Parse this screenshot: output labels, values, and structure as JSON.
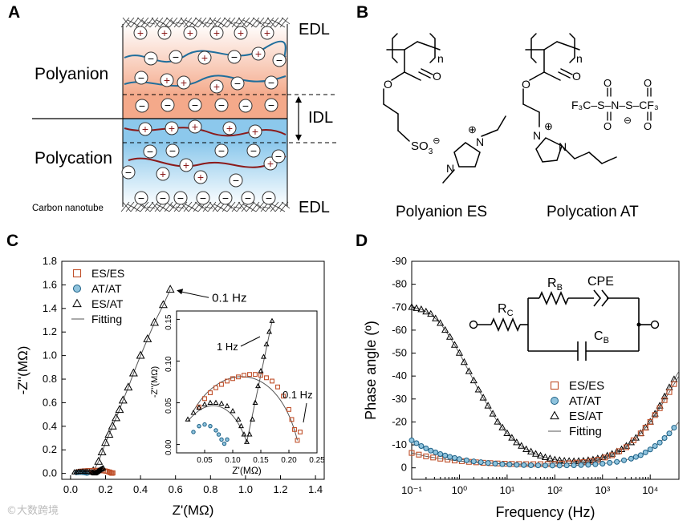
{
  "panel_labels": {
    "a": "A",
    "b": "B",
    "c": "C",
    "d": "D"
  },
  "panel_a": {
    "polyanion": "Polyanion",
    "polycation": "Polycation",
    "edl_top": "EDL",
    "edl_bottom": "EDL",
    "idl": "IDL",
    "cnt": "Carbon nanotube",
    "plus": "+",
    "minus": "−"
  },
  "panel_b": {
    "es_name": "Polyanion ES",
    "at_name": "Polycation AT",
    "n": "n",
    "so3": "SO",
    "so3_sub": "3",
    "so3_sup": "⊖",
    "n_atom": "N",
    "n_plus": "⊕",
    "o_atom": "O",
    "tfsi_left": "F₃C–S–N–S–CF₃",
    "tfsi_minus": "⊖"
  },
  "colors": {
    "es": "#c0502a",
    "at": "#2a7fa8",
    "esat": "#000000",
    "fit": "#555555",
    "polyanion_bg": "#f4a98a",
    "polycation_bg": "#8cc8ec",
    "chain_anion": "#1f6e9c",
    "chain_cation": "#8b1a1a"
  },
  "chart_data": [
    {
      "panel": "C",
      "type": "scatter",
      "xlabel": "Z'(MΩ)",
      "ylabel": "-Z''(MΩ)",
      "xlim": [
        -0.05,
        1.45
      ],
      "ylim": [
        -0.05,
        1.8
      ],
      "xticks": [
        "0.0",
        "0.2",
        "0.4",
        "0.6",
        "0.8",
        "1.0",
        "1.2",
        "1.4"
      ],
      "yticks": [
        "0.0",
        "0.2",
        "0.4",
        "0.6",
        "0.8",
        "1.0",
        "1.2",
        "1.4",
        "1.6",
        "1.8"
      ],
      "legend": [
        "ES/ES",
        "AT/AT",
        "ES/AT",
        "Fitting"
      ],
      "annotation": "0.1 Hz",
      "series": [
        {
          "name": "ES/AT",
          "x": [
            0.13,
            0.16,
            0.18,
            0.2,
            0.22,
            0.24,
            0.26,
            0.28,
            0.3,
            0.33,
            0.36,
            0.4,
            0.44,
            0.48,
            0.53,
            0.57
          ],
          "y": [
            0.02,
            0.1,
            0.18,
            0.26,
            0.33,
            0.4,
            0.47,
            0.54,
            0.62,
            0.73,
            0.85,
            1.0,
            1.14,
            1.28,
            1.43,
            1.56
          ]
        }
      ],
      "inset": {
        "xlabel": "Z'(MΩ)",
        "ylabel": "-Z''(MΩ)",
        "xlim": [
          0.0,
          0.25
        ],
        "ylim": [
          -0.01,
          0.16
        ],
        "xticks": [
          "0.05",
          "0.10",
          "0.15",
          "0.20",
          "0.25"
        ],
        "yticks": [
          "0.00",
          "0.05",
          "0.10",
          "0.15"
        ],
        "annotations": [
          "1 Hz",
          "0.1 Hz"
        ],
        "es_es": {
          "x": [
            0.04,
            0.05,
            0.06,
            0.07,
            0.08,
            0.09,
            0.1,
            0.11,
            0.12,
            0.13,
            0.14,
            0.15,
            0.16,
            0.17,
            0.18,
            0.19,
            0.2,
            0.205,
            0.21,
            0.215,
            0.22
          ],
          "y": [
            0.045,
            0.055,
            0.062,
            0.068,
            0.072,
            0.076,
            0.079,
            0.081,
            0.083,
            0.084,
            0.084,
            0.083,
            0.08,
            0.076,
            0.069,
            0.058,
            0.042,
            0.03,
            0.018,
            0.005,
            0.015
          ]
        },
        "at_at": {
          "x": [
            0.03,
            0.04,
            0.05,
            0.06,
            0.07,
            0.075,
            0.08,
            0.085,
            0.09
          ],
          "y": [
            0.015,
            0.022,
            0.024,
            0.022,
            0.017,
            0.012,
            0.006,
            0.001,
            0.006
          ]
        },
        "es_at": {
          "x": [
            0.02,
            0.03,
            0.04,
            0.05,
            0.06,
            0.07,
            0.08,
            0.09,
            0.1,
            0.11,
            0.115,
            0.12,
            0.125,
            0.13,
            0.135,
            0.14,
            0.145,
            0.15,
            0.155,
            0.16,
            0.165,
            0.17
          ],
          "y": [
            0.03,
            0.038,
            0.044,
            0.048,
            0.05,
            0.05,
            0.049,
            0.046,
            0.04,
            0.03,
            0.022,
            0.012,
            0.003,
            0.012,
            0.03,
            0.05,
            0.07,
            0.088,
            0.105,
            0.12,
            0.135,
            0.148
          ]
        }
      }
    },
    {
      "panel": "D",
      "type": "scatter",
      "xlabel": "Frequency (Hz)",
      "ylabel": "Phase angle (º)",
      "xscale": "log",
      "xlim": [
        0.1,
        40000
      ],
      "ylim": [
        5,
        -90
      ],
      "xticks": [
        "10⁻¹",
        "10⁰",
        "10¹",
        "10²",
        "10³",
        "10⁴"
      ],
      "yticks": [
        "0",
        "-10",
        "-20",
        "-30",
        "-40",
        "-50",
        "-60",
        "-70",
        "-80",
        "-90"
      ],
      "legend": [
        "ES/ES",
        "AT/AT",
        "ES/AT",
        "Fitting"
      ],
      "circuit": {
        "rc": "R",
        "rc_sub": "C",
        "rb": "R",
        "rb_sub": "B",
        "cpe": "CPE",
        "cb": "C",
        "cb_sub": "B"
      },
      "series": [
        {
          "name": "ES/AT",
          "x_log": [
            -1,
            -0.8,
            -0.6,
            -0.4,
            -0.2,
            0,
            0.2,
            0.4,
            0.6,
            0.8,
            1,
            1.2,
            1.4,
            1.6,
            1.8,
            2,
            2.2,
            2.4,
            2.6,
            2.8,
            3,
            3.2,
            3.4,
            3.6,
            3.8,
            4,
            4.2,
            4.4,
            4.6
          ],
          "y": [
            -70,
            -69,
            -67,
            -63,
            -57,
            -50,
            -42,
            -34,
            -27,
            -20,
            -15,
            -11,
            -8,
            -6,
            -4.5,
            -3.5,
            -3,
            -2.8,
            -3,
            -3.5,
            -4.5,
            -6,
            -8,
            -11,
            -15,
            -20,
            -27,
            -35,
            -42
          ]
        },
        {
          "name": "ES/ES",
          "x_log": [
            -1,
            -0.7,
            -0.4,
            -0.1,
            0.2,
            0.5,
            0.8,
            1.1,
            1.4,
            1.7,
            2,
            2.3,
            2.6,
            2.9,
            3.2,
            3.5,
            3.8,
            4,
            4.2,
            4.4,
            4.6
          ],
          "y": [
            -6.5,
            -5,
            -4,
            -3.2,
            -2.6,
            -2.2,
            -1.9,
            -1.7,
            -1.6,
            -1.6,
            -1.7,
            -2,
            -2.5,
            -3.5,
            -5.5,
            -9,
            -15,
            -20,
            -26,
            -33,
            -40
          ]
        },
        {
          "name": "AT/AT",
          "x_log": [
            -1,
            -0.8,
            -0.6,
            -0.4,
            -0.2,
            0,
            0.3,
            0.6,
            0.9,
            1.2,
            1.5,
            1.8,
            2.1,
            2.4,
            2.7,
            3,
            3.3,
            3.6,
            3.8,
            4,
            4.2,
            4.4,
            4.6
          ],
          "y": [
            -12,
            -9.5,
            -7.5,
            -6,
            -4.8,
            -3.8,
            -2.8,
            -2.1,
            -1.6,
            -1.3,
            -1.1,
            -1,
            -1,
            -1.1,
            -1.3,
            -1.8,
            -2.6,
            -4,
            -5.5,
            -8,
            -11,
            -15,
            -20
          ]
        }
      ]
    }
  ]
}
